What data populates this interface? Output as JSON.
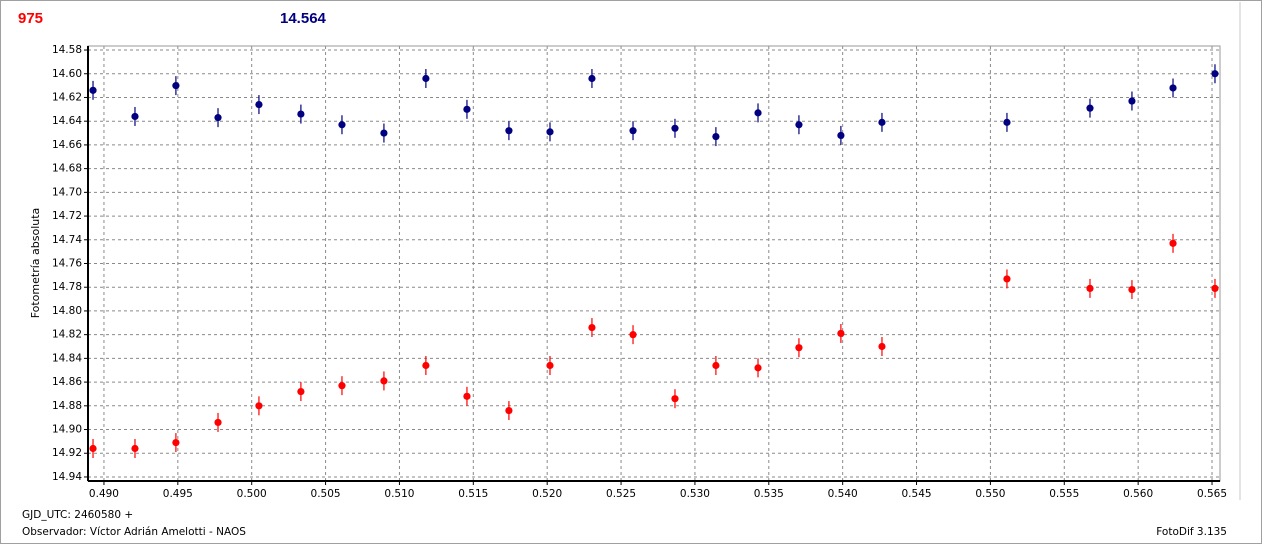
{
  "header": {
    "left": "975",
    "right": "14.564"
  },
  "footer": {
    "date": "GJD_UTC: 2460580 +",
    "observer": "Observador: Víctor Adrián Amelotti - NAOS",
    "software": "FotoDif 3.135"
  },
  "chart_data": {
    "type": "scatter",
    "y_label": "Fotometría absoluta",
    "grid": true,
    "xlim": [
      0.48892,
      0.56554
    ],
    "ylim": [
      14.9434,
      14.5766
    ],
    "xticks": [
      {
        "value": 0.49,
        "label": "0.490"
      },
      0.495,
      {
        "value": 0.5,
        "label": "0.500"
      },
      0.505,
      {
        "value": 0.51,
        "label": "0.510"
      },
      0.515,
      {
        "value": 0.52,
        "label": "0.520"
      },
      0.525,
      {
        "value": 0.53,
        "label": "0.530"
      },
      0.535,
      {
        "value": 0.54,
        "label": "0.540"
      },
      0.545,
      {
        "value": 0.55,
        "label": "0.550"
      },
      0.555,
      {
        "value": 0.56,
        "label": "0.560"
      },
      0.565
    ],
    "yticks": [
      14.58,
      {
        "value": 14.6,
        "label": "14.60"
      },
      14.62,
      14.64,
      14.66,
      14.68,
      {
        "value": 14.7,
        "label": "14.70"
      },
      14.72,
      14.74,
      14.76,
      14.78,
      {
        "value": 14.8,
        "label": "14.80"
      },
      14.82,
      14.84,
      14.86,
      14.88,
      {
        "value": 14.9,
        "label": "14.90"
      },
      14.92,
      14.94
    ],
    "x": [
      0.48926,
      0.4921,
      0.49487,
      0.49772,
      0.50049,
      0.50333,
      0.50611,
      0.50895,
      0.51179,
      0.51457,
      0.51741,
      0.52019,
      0.52303,
      0.52581,
      0.52865,
      0.53142,
      0.53427,
      0.53704,
      0.53988,
      0.54266,
      0.55112,
      0.55674,
      0.55958,
      0.56236,
      0.5652
    ],
    "series": [
      {
        "color": "#000080",
        "values": [
          14.614,
          14.636,
          14.61,
          14.637,
          14.626,
          14.634,
          14.643,
          14.65,
          14.604,
          14.63,
          14.648,
          14.649,
          14.604,
          14.648,
          14.646,
          14.653,
          14.633,
          14.643,
          14.652,
          14.641,
          14.641,
          14.629,
          14.623,
          14.612,
          14.6
        ],
        "errors": [
          0.008,
          0.008,
          0.008,
          0.008,
          0.008,
          0.008,
          0.008,
          0.008,
          0.008,
          0.008,
          0.008,
          0.008,
          0.008,
          0.008,
          0.008,
          0.008,
          0.008,
          0.008,
          0.008,
          0.008,
          0.008,
          0.008,
          0.008,
          0.008,
          0.008
        ]
      },
      {
        "color": "#ff0000",
        "values": [
          14.916,
          14.916,
          14.911,
          14.894,
          14.88,
          14.868,
          14.863,
          14.859,
          14.846,
          14.872,
          14.884,
          14.846,
          14.814,
          14.82,
          14.874,
          14.846,
          14.848,
          14.831,
          14.819,
          14.83,
          14.773,
          14.781,
          14.782,
          14.743,
          14.781
        ],
        "errors": [
          0.008,
          0.008,
          0.008,
          0.008,
          0.008,
          0.008,
          0.008,
          0.008,
          0.008,
          0.008,
          0.008,
          0.008,
          0.008,
          0.008,
          0.008,
          0.008,
          0.008,
          0.008,
          0.008,
          0.008,
          0.008,
          0.008,
          0.008,
          0.008,
          0.008
        ]
      }
    ]
  }
}
